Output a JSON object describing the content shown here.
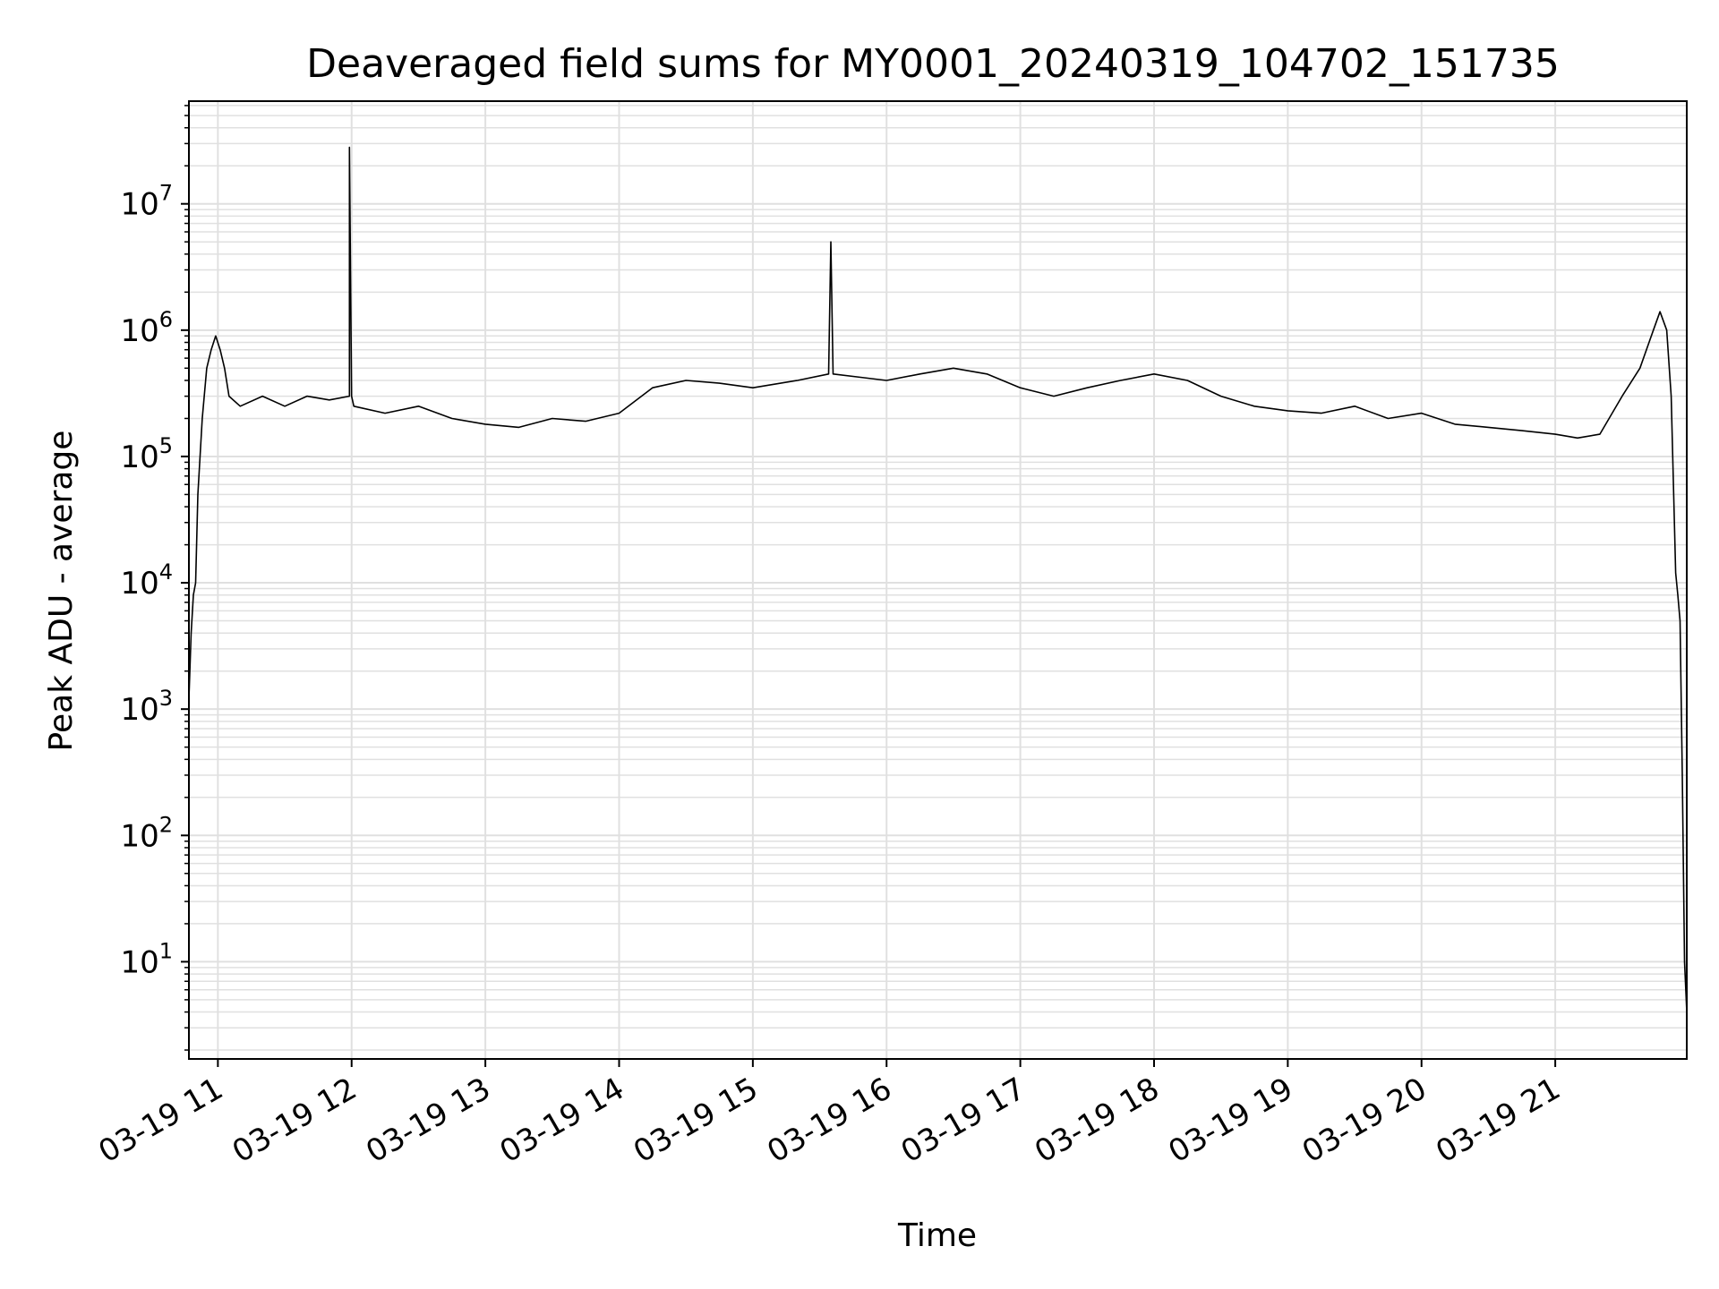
{
  "chart_data": {
    "type": "line",
    "title": "Deaveraged field sums for MY0001_20240319_104702_151735",
    "xlabel": "Time",
    "ylabel": "Peak ADU - average",
    "y_scale": "log",
    "x_range": [
      "2024-03-19T10:47",
      "2024-03-19T21:59"
    ],
    "ylim": [
      1.7,
      65000000
    ],
    "grid": true,
    "line_color": "#000000",
    "grid_color": "#e0e0e0",
    "x_ticks": [
      {
        "time": "2024-03-19T11:00",
        "label": "03-19 11"
      },
      {
        "time": "2024-03-19T12:00",
        "label": "03-19 12"
      },
      {
        "time": "2024-03-19T13:00",
        "label": "03-19 13"
      },
      {
        "time": "2024-03-19T14:00",
        "label": "03-19 14"
      },
      {
        "time": "2024-03-19T15:00",
        "label": "03-19 15"
      },
      {
        "time": "2024-03-19T16:00",
        "label": "03-19 16"
      },
      {
        "time": "2024-03-19T17:00",
        "label": "03-19 17"
      },
      {
        "time": "2024-03-19T18:00",
        "label": "03-19 18"
      },
      {
        "time": "2024-03-19T19:00",
        "label": "03-19 19"
      },
      {
        "time": "2024-03-19T20:00",
        "label": "03-19 20"
      },
      {
        "time": "2024-03-19T21:00",
        "label": "03-19 21"
      }
    ],
    "y_ticks": [
      {
        "value": 10,
        "base": "10",
        "exp": "1"
      },
      {
        "value": 100,
        "base": "10",
        "exp": "2"
      },
      {
        "value": 1000,
        "base": "10",
        "exp": "3"
      },
      {
        "value": 10000,
        "base": "10",
        "exp": "4"
      },
      {
        "value": 100000,
        "base": "10",
        "exp": "5"
      },
      {
        "value": 1000000,
        "base": "10",
        "exp": "6"
      },
      {
        "value": 10000000,
        "base": "10",
        "exp": "7"
      }
    ],
    "series": [
      {
        "x": [
          "2024-03-19T10:47",
          "2024-03-19T10:47",
          "2024-03-19T10:48",
          "2024-03-19T10:49",
          "2024-03-19T10:50",
          "2024-03-19T10:51",
          "2024-03-19T10:53",
          "2024-03-19T10:55",
          "2024-03-19T10:57",
          "2024-03-19T10:59",
          "2024-03-19T11:01",
          "2024-03-19T11:03",
          "2024-03-19T11:05",
          "2024-03-19T11:10",
          "2024-03-19T11:20",
          "2024-03-19T11:30",
          "2024-03-19T11:40",
          "2024-03-19T11:50",
          "2024-03-19T11:59",
          "2024-03-19T11:59",
          "2024-03-19T12:00",
          "2024-03-19T12:01",
          "2024-03-19T12:15",
          "2024-03-19T12:30",
          "2024-03-19T12:45",
          "2024-03-19T13:00",
          "2024-03-19T13:15",
          "2024-03-19T13:30",
          "2024-03-19T13:45",
          "2024-03-19T14:00",
          "2024-03-19T14:15",
          "2024-03-19T14:30",
          "2024-03-19T14:45",
          "2024-03-19T15:00",
          "2024-03-19T15:20",
          "2024-03-19T15:34",
          "2024-03-19T15:35",
          "2024-03-19T15:36",
          "2024-03-19T15:50",
          "2024-03-19T16:00",
          "2024-03-19T16:15",
          "2024-03-19T16:30",
          "2024-03-19T16:45",
          "2024-03-19T17:00",
          "2024-03-19T17:15",
          "2024-03-19T17:30",
          "2024-03-19T17:45",
          "2024-03-19T18:00",
          "2024-03-19T18:15",
          "2024-03-19T18:30",
          "2024-03-19T18:45",
          "2024-03-19T19:00",
          "2024-03-19T19:15",
          "2024-03-19T19:30",
          "2024-03-19T19:45",
          "2024-03-19T20:00",
          "2024-03-19T20:15",
          "2024-03-19T20:30",
          "2024-03-19T20:45",
          "2024-03-19T21:00",
          "2024-03-19T21:10",
          "2024-03-19T21:20",
          "2024-03-19T21:30",
          "2024-03-19T21:38",
          "2024-03-19T21:44",
          "2024-03-19T21:47",
          "2024-03-19T21:50",
          "2024-03-19T21:52",
          "2024-03-19T21:54",
          "2024-03-19T21:55",
          "2024-03-19T21:56",
          "2024-03-19T21:57",
          "2024-03-19T21:58",
          "2024-03-19T21:59"
        ],
        "y": [
          110000,
          1200,
          4000,
          8000,
          10000,
          50000,
          200000,
          500000,
          700000,
          900000,
          700000,
          500000,
          300000,
          250000,
          300000,
          250000,
          300000,
          280000,
          300000,
          28000000,
          300000,
          250000,
          220000,
          250000,
          200000,
          180000,
          170000,
          200000,
          190000,
          220000,
          350000,
          400000,
          380000,
          350000,
          400000,
          450000,
          5000000,
          450000,
          420000,
          400000,
          450000,
          500000,
          450000,
          350000,
          300000,
          350000,
          400000,
          450000,
          400000,
          300000,
          250000,
          230000,
          220000,
          250000,
          200000,
          220000,
          180000,
          170000,
          160000,
          150000,
          140000,
          150000,
          300000,
          500000,
          1000000,
          1400000,
          1000000,
          300000,
          12000,
          8000,
          5000,
          300,
          10,
          4
        ]
      }
    ]
  }
}
